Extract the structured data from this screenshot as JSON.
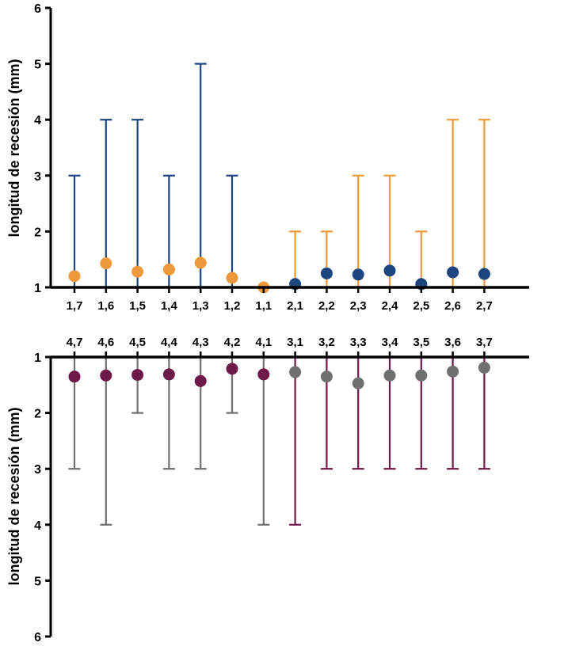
{
  "colors": {
    "orange": "#EE9A3A",
    "navy": "#1D4580",
    "maroon": "#6E1A48",
    "gray": "#707070",
    "axis": "#000000"
  },
  "chart_data": [
    {
      "type": "scatter",
      "panel": "upper",
      "ylabel": "longitud de recesión (mm)",
      "xlabel": "",
      "ylim": [
        1,
        6
      ],
      "yticks": [
        "1",
        "2",
        "3",
        "4",
        "5",
        "6"
      ],
      "categories": [
        "1,7",
        "1,6",
        "1,5",
        "1,4",
        "1,3",
        "1,2",
        "1,1",
        "2,1",
        "2,2",
        "2,3",
        "2,4",
        "2,5",
        "2,6",
        "2,7"
      ],
      "values": [
        1.2,
        1.43,
        1.28,
        1.32,
        1.44,
        1.17,
        1.0,
        1.06,
        1.25,
        1.23,
        1.3,
        1.06,
        1.27,
        1.24
      ],
      "upper": [
        3,
        4,
        4,
        3,
        5,
        3,
        1,
        2,
        2,
        3,
        3,
        2,
        4,
        4
      ],
      "lower": [
        1,
        1,
        1,
        1,
        1,
        1,
        1,
        1,
        1,
        1,
        1,
        1,
        1,
        1
      ],
      "point_colors": [
        "orange",
        "orange",
        "orange",
        "orange",
        "orange",
        "orange",
        "orange",
        "navy",
        "navy",
        "navy",
        "navy",
        "navy",
        "navy",
        "navy"
      ],
      "bar_colors": [
        "navy",
        "navy",
        "navy",
        "navy",
        "navy",
        "navy",
        "navy",
        "orange",
        "orange",
        "orange",
        "orange",
        "orange",
        "orange",
        "orange"
      ],
      "grid": false
    },
    {
      "type": "scatter",
      "panel": "lower",
      "ylabel": "longitud de recesión (mm)",
      "xlabel": "",
      "ylim": [
        1,
        6
      ],
      "y_inverted": true,
      "yticks": [
        "1",
        "2",
        "3",
        "4",
        "5",
        "6"
      ],
      "categories": [
        "4,7",
        "4,6",
        "4,5",
        "4,4",
        "4,3",
        "4,2",
        "4,1",
        "3,1",
        "3,2",
        "3,3",
        "3,4",
        "3,5",
        "3,6",
        "3,7"
      ],
      "values": [
        1.35,
        1.33,
        1.32,
        1.31,
        1.43,
        1.21,
        1.31,
        1.27,
        1.35,
        1.47,
        1.33,
        1.33,
        1.26,
        1.19
      ],
      "upper": [
        3,
        4,
        2,
        3,
        3,
        2,
        4,
        4,
        3,
        3,
        3,
        3,
        3,
        3
      ],
      "lower": [
        1,
        1,
        1,
        1,
        1,
        1,
        1,
        1,
        1,
        1,
        1,
        1,
        1,
        1
      ],
      "point_colors": [
        "maroon",
        "maroon",
        "maroon",
        "maroon",
        "maroon",
        "maroon",
        "maroon",
        "gray",
        "gray",
        "gray",
        "gray",
        "gray",
        "gray",
        "gray"
      ],
      "bar_colors": [
        "gray",
        "gray",
        "gray",
        "gray",
        "gray",
        "gray",
        "gray",
        "maroon",
        "maroon",
        "maroon",
        "maroon",
        "maroon",
        "maroon",
        "maroon"
      ],
      "grid": false
    }
  ]
}
